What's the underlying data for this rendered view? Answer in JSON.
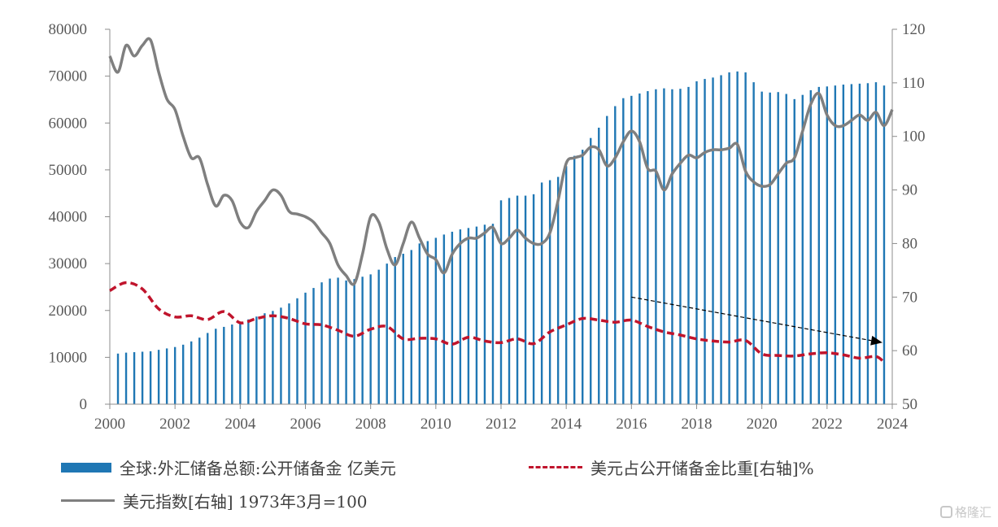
{
  "chart_data": {
    "type": "bar+line",
    "x_ticks": [
      "2000",
      "2002",
      "2004",
      "2006",
      "2008",
      "2010",
      "2012",
      "2014",
      "2016",
      "2018",
      "2020",
      "2022",
      "2024"
    ],
    "left_axis": {
      "ticks": [
        "0",
        "10000",
        "20000",
        "30000",
        "40000",
        "50000",
        "60000",
        "70000",
        "80000"
      ],
      "ylim": [
        0,
        80000
      ]
    },
    "right_axis": {
      "ticks": [
        "50",
        "60",
        "70",
        "80",
        "90",
        "100",
        "110",
        "120"
      ],
      "ylim": [
        50,
        120
      ]
    },
    "xlim": [
      2000,
      2024
    ],
    "series": [
      {
        "name": "全球:外汇储备总额:公开储备金 亿美元",
        "type": "bar",
        "axis": "left",
        "color": "#1f77b4",
        "x": [
          2000.25,
          2000.5,
          2000.75,
          2001.0,
          2001.25,
          2001.5,
          2001.75,
          2002.0,
          2002.25,
          2002.5,
          2002.75,
          2003.0,
          2003.25,
          2003.5,
          2003.75,
          2004.0,
          2004.25,
          2004.5,
          2004.75,
          2005.0,
          2005.25,
          2005.5,
          2005.75,
          2006.0,
          2006.25,
          2006.5,
          2006.75,
          2007.0,
          2007.25,
          2007.5,
          2007.75,
          2008.0,
          2008.25,
          2008.5,
          2008.75,
          2009.0,
          2009.25,
          2009.5,
          2009.75,
          2010.0,
          2010.25,
          2010.5,
          2010.75,
          2011.0,
          2011.25,
          2011.5,
          2011.75,
          2012.0,
          2012.25,
          2012.5,
          2012.75,
          2013.0,
          2013.25,
          2013.5,
          2013.75,
          2014.0,
          2014.25,
          2014.5,
          2014.75,
          2015.0,
          2015.25,
          2015.5,
          2015.75,
          2016.0,
          2016.25,
          2016.5,
          2016.75,
          2017.0,
          2017.25,
          2017.5,
          2017.75,
          2018.0,
          2018.25,
          2018.5,
          2018.75,
          2019.0,
          2019.25,
          2019.5,
          2019.75,
          2020.0,
          2020.25,
          2020.5,
          2020.75,
          2021.0,
          2021.25,
          2021.5,
          2021.75,
          2022.0,
          2022.25,
          2022.5,
          2022.75,
          2023.0,
          2023.25,
          2023.5,
          2023.75
        ],
        "values": [
          10800,
          11000,
          11100,
          11200,
          11300,
          11600,
          11900,
          12200,
          12700,
          13400,
          14200,
          15200,
          16100,
          16500,
          17000,
          17600,
          18100,
          18700,
          19400,
          19900,
          20600,
          21500,
          22600,
          23800,
          24800,
          26000,
          26800,
          27000,
          26400,
          26700,
          27200,
          27700,
          28700,
          30000,
          31400,
          32100,
          32900,
          34300,
          34800,
          35500,
          36200,
          36800,
          37300,
          37600,
          37900,
          38300,
          38500,
          43500,
          44000,
          44500,
          44500,
          44800,
          47300,
          47800,
          48500,
          50800,
          53000,
          54300,
          56800,
          59000,
          61500,
          63600,
          65300,
          65800,
          66300,
          66800,
          67200,
          67400,
          67200,
          67300,
          67700,
          68900,
          69400,
          69700,
          70200,
          70800,
          71000,
          70800,
          68700,
          66700,
          66500,
          66600,
          66200,
          65100,
          66000,
          67000,
          67700,
          67800,
          68000,
          68200,
          68300,
          68400,
          68500,
          68700,
          68000
        ]
      },
      {
        "name": "美元占公开储备金比重[右轴]%",
        "type": "line",
        "axis": "right",
        "style": "dashed",
        "color": "#c0142c",
        "x": [
          2000,
          2000.5,
          2001,
          2001.5,
          2002,
          2002.5,
          2003,
          2003.5,
          2004,
          2004.5,
          2005,
          2005.5,
          2006,
          2006.5,
          2007,
          2007.5,
          2008,
          2008.5,
          2009,
          2009.5,
          2010,
          2010.5,
          2011,
          2011.5,
          2012,
          2012.5,
          2013,
          2013.5,
          2014,
          2014.5,
          2015,
          2015.5,
          2016,
          2016.5,
          2017,
          2017.5,
          2018,
          2018.5,
          2019,
          2019.5,
          2020,
          2020.5,
          2021,
          2021.5,
          2022,
          2022.5,
          2023,
          2023.5,
          2023.75
        ],
        "values": [
          71.2,
          72.7,
          71.5,
          67.8,
          66.3,
          66.5,
          65.8,
          67.3,
          65.2,
          66.0,
          66.5,
          66.0,
          65.0,
          64.8,
          63.8,
          62.7,
          64.0,
          64.5,
          62.2,
          62.3,
          62.2,
          61.2,
          62.5,
          61.8,
          61.5,
          62.2,
          61.3,
          63.5,
          64.8,
          66.0,
          65.7,
          65.3,
          65.7,
          64.5,
          63.5,
          62.9,
          62.2,
          61.8,
          61.6,
          61.9,
          59.4,
          59.1,
          59.0,
          59.4,
          59.6,
          59.2,
          58.6,
          58.9,
          57.8
        ]
      },
      {
        "name": "美元指数[右轴] 1973年3月=100",
        "type": "line",
        "axis": "right",
        "color": "#7f7f7f",
        "x": [
          2000,
          2000.25,
          2000.5,
          2000.75,
          2001.0,
          2001.25,
          2001.5,
          2001.75,
          2002.0,
          2002.25,
          2002.5,
          2002.75,
          2003.0,
          2003.25,
          2003.5,
          2003.75,
          2004.0,
          2004.25,
          2004.5,
          2004.75,
          2005.0,
          2005.25,
          2005.5,
          2005.75,
          2006.0,
          2006.25,
          2006.5,
          2006.75,
          2007.0,
          2007.25,
          2007.5,
          2007.75,
          2008.0,
          2008.25,
          2008.5,
          2008.75,
          2009.0,
          2009.25,
          2009.5,
          2009.75,
          2010.0,
          2010.25,
          2010.5,
          2010.75,
          2011.0,
          2011.25,
          2011.5,
          2011.75,
          2012.0,
          2012.25,
          2012.5,
          2012.75,
          2013.0,
          2013.25,
          2013.5,
          2013.75,
          2014.0,
          2014.25,
          2014.5,
          2014.75,
          2015.0,
          2015.25,
          2015.5,
          2015.75,
          2016.0,
          2016.25,
          2016.5,
          2016.75,
          2017.0,
          2017.25,
          2017.5,
          2017.75,
          2018.0,
          2018.25,
          2018.5,
          2018.75,
          2019.0,
          2019.25,
          2019.5,
          2019.75,
          2020.0,
          2020.25,
          2020.5,
          2020.75,
          2021.0,
          2021.25,
          2021.5,
          2021.75,
          2022.0,
          2022.25,
          2022.5,
          2022.75,
          2023.0,
          2023.25,
          2023.5,
          2023.75,
          2024.0
        ],
        "values": [
          115,
          112,
          117,
          115,
          117,
          118,
          112,
          107,
          105,
          100,
          96,
          96,
          91,
          87,
          89,
          88,
          84,
          83,
          86,
          88,
          90,
          89,
          86,
          85.5,
          85,
          84,
          82,
          80,
          76,
          74,
          72.5,
          78,
          85,
          84,
          79,
          76,
          80,
          84,
          81,
          78,
          77,
          74.5,
          78,
          80,
          81,
          81,
          82,
          83,
          80,
          81,
          82.5,
          81,
          80,
          80,
          82,
          88,
          95,
          96,
          96.5,
          98,
          97.5,
          94.5,
          96,
          99,
          101,
          99,
          94,
          93.5,
          90,
          93,
          95,
          96.5,
          96,
          97,
          97.5,
          97.5,
          97.8,
          98.5,
          93.5,
          91.5,
          90.7,
          91,
          93,
          95,
          96,
          101,
          106,
          108,
          104,
          102,
          102,
          103,
          104,
          103,
          104.5,
          102,
          105
        ]
      }
    ],
    "annotation": {
      "type": "arrow",
      "style": "dashed",
      "color": "#000000",
      "from": [
        2016,
        70
      ],
      "to": [
        2023.7,
        61.5
      ]
    }
  },
  "legend": {
    "item1": "全球:外汇储备总额:公开储备金 亿美元",
    "item2": "美元占公开储备金比重[右轴]%",
    "item3": "美元指数[右轴] 1973年3月=100"
  },
  "watermark": {
    "text": "格隆汇"
  }
}
